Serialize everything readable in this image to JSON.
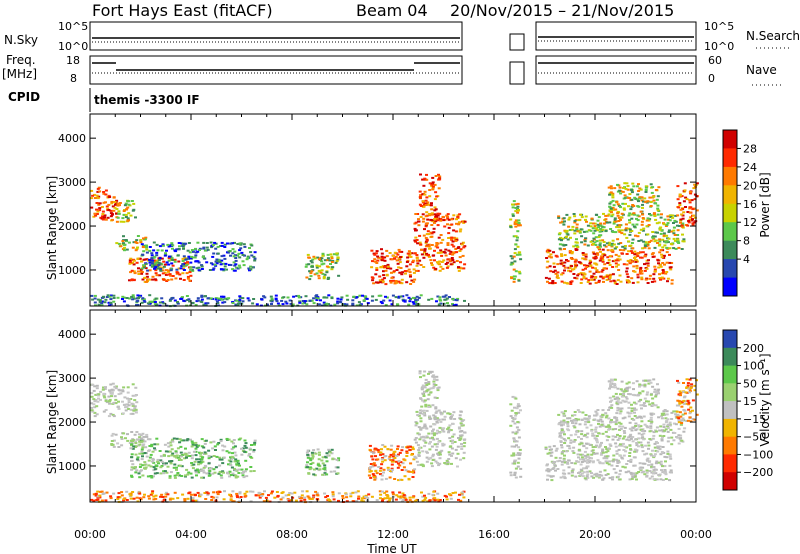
{
  "header": {
    "title": "Fort Hays East (fitACF)",
    "beam": "Beam 04",
    "date_range": "20/Nov/2015 – 21/Nov/2015"
  },
  "strips": {
    "sky": {
      "label": "N.Sky",
      "ticks": [
        "10^5",
        "10^0"
      ],
      "right_label": "N.Search",
      "right_ticks": [
        "10^5",
        "10^0"
      ]
    },
    "freq": {
      "label": "Freq.",
      "unit": "[MHz]",
      "ticks": [
        "18",
        "8"
      ],
      "right_label": "Nave",
      "right_ticks": [
        "60",
        "0"
      ]
    },
    "cpid": {
      "label": "CPID",
      "value": "themis -3300 IF"
    }
  },
  "chart_data": [
    {
      "type": "heatmap",
      "name": "power",
      "ylabel": "Slant Range [km]",
      "yticks": [
        1000,
        2000,
        3000,
        4000
      ],
      "ylim": [
        180,
        4550
      ],
      "xlim": [
        0,
        24
      ],
      "colorbar": {
        "label": "Power [dB]",
        "ticks": [
          "28",
          "24",
          "20",
          "16",
          "12",
          "8",
          "4"
        ],
        "colors": [
          "#d00000",
          "#ff2a00",
          "#ff7a00",
          "#f0b400",
          "#c8d200",
          "#5cc84a",
          "#3c8a5a",
          "#2848b0",
          "#0000ff"
        ]
      },
      "regions": [
        {
          "t": [
            0.0,
            1.0
          ],
          "r": [
            2150,
            2900
          ],
          "level": "high"
        },
        {
          "t": [
            1.0,
            1.8
          ],
          "r": [
            2100,
            2600
          ],
          "level": "mid"
        },
        {
          "t": [
            1.0,
            2.2
          ],
          "r": [
            1450,
            1800
          ],
          "level": "mid"
        },
        {
          "t": [
            1.5,
            4.0
          ],
          "r": [
            750,
            1300
          ],
          "level": "high"
        },
        {
          "t": [
            2.0,
            6.5
          ],
          "r": [
            1000,
            1650
          ],
          "level": "low"
        },
        {
          "t": [
            8.5,
            9.8
          ],
          "r": [
            800,
            1400
          ],
          "level": "mid"
        },
        {
          "t": [
            11.0,
            12.8
          ],
          "r": [
            700,
            1500
          ],
          "level": "high"
        },
        {
          "t": [
            12.8,
            14.8
          ],
          "r": [
            1000,
            2300
          ],
          "level": "high"
        },
        {
          "t": [
            13.0,
            13.8
          ],
          "r": [
            2200,
            3200
          ],
          "level": "high"
        },
        {
          "t": [
            16.6,
            17.0
          ],
          "r": [
            750,
            2600
          ],
          "level": "mid"
        },
        {
          "t": [
            18.0,
            23.0
          ],
          "r": [
            700,
            1500
          ],
          "level": "high"
        },
        {
          "t": [
            18.5,
            23.5
          ],
          "r": [
            1500,
            2300
          ],
          "level": "mid"
        },
        {
          "t": [
            20.5,
            22.5
          ],
          "r": [
            2300,
            3000
          ],
          "level": "mid"
        },
        {
          "t": [
            23.2,
            24.0
          ],
          "r": [
            2000,
            3000
          ],
          "level": "high"
        },
        {
          "t": [
            0.0,
            14.8
          ],
          "r": [
            200,
            450
          ],
          "level": "low"
        }
      ]
    },
    {
      "type": "heatmap",
      "name": "velocity",
      "xlabel": "Time UT",
      "ylabel": "Slant Range [km]",
      "xticks": [
        "00:00",
        "04:00",
        "08:00",
        "12:00",
        "16:00",
        "20:00",
        "00:00"
      ],
      "yticks": [
        1000,
        2000,
        3000,
        4000
      ],
      "ylim": [
        180,
        4550
      ],
      "xlim": [
        0,
        24
      ],
      "colorbar": {
        "label": "Velocity [m s⁻¹]",
        "ticks": [
          "200",
          "100",
          "50",
          "15",
          "−15",
          "−50",
          "−100",
          "−200"
        ],
        "colors": [
          "#2848b0",
          "#3c8a5a",
          "#5cc84a",
          "#9ad070",
          "#c0c0c0",
          "#f0b400",
          "#ff7a00",
          "#ff2a00",
          "#d00000"
        ]
      },
      "regions": [
        {
          "t": [
            0.0,
            1.8
          ],
          "r": [
            2150,
            2900
          ],
          "level": "zero"
        },
        {
          "t": [
            0.8,
            2.2
          ],
          "r": [
            1450,
            1800
          ],
          "level": "zero"
        },
        {
          "t": [
            1.5,
            6.5
          ],
          "r": [
            750,
            1650
          ],
          "level": "pos"
        },
        {
          "t": [
            8.5,
            9.8
          ],
          "r": [
            800,
            1400
          ],
          "level": "pos"
        },
        {
          "t": [
            11.0,
            12.8
          ],
          "r": [
            700,
            1500
          ],
          "level": "neg"
        },
        {
          "t": [
            12.8,
            14.8
          ],
          "r": [
            1000,
            2300
          ],
          "level": "zero"
        },
        {
          "t": [
            13.0,
            13.8
          ],
          "r": [
            2200,
            3200
          ],
          "level": "zero"
        },
        {
          "t": [
            16.6,
            17.0
          ],
          "r": [
            750,
            2600
          ],
          "level": "zero"
        },
        {
          "t": [
            18.0,
            23.0
          ],
          "r": [
            700,
            1500
          ],
          "level": "zero"
        },
        {
          "t": [
            18.5,
            23.5
          ],
          "r": [
            1500,
            2300
          ],
          "level": "zero"
        },
        {
          "t": [
            20.5,
            22.5
          ],
          "r": [
            2300,
            3000
          ],
          "level": "zero"
        },
        {
          "t": [
            23.2,
            24.0
          ],
          "r": [
            2000,
            3000
          ],
          "level": "neg"
        },
        {
          "t": [
            0.0,
            14.8
          ],
          "r": [
            200,
            450
          ],
          "level": "neg"
        }
      ]
    }
  ]
}
